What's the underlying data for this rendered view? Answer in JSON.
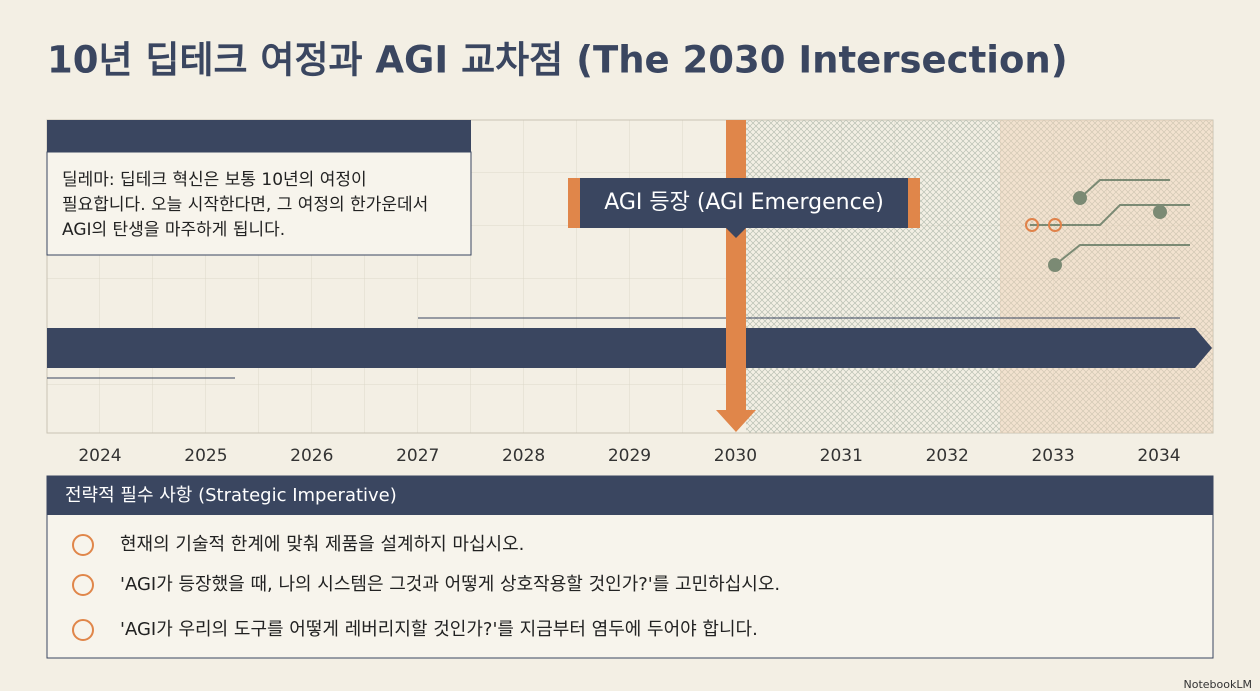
{
  "header": {
    "title": "10년 딥테크 여정과 AGI 교차점 (The 2030 Intersection)"
  },
  "callout": {
    "lines": [
      "딜레마: 딥테크 혁신은 보통 10년의 여정이",
      "필요합니다. 오늘 시작한다면, 그 여정의 한가운데서",
      "AGI의 탄생을 마주하게 됩니다."
    ]
  },
  "marker": {
    "label": "AGI 등장 (AGI Emergence)"
  },
  "timeline": {
    "years": [
      "2024",
      "2025",
      "2026",
      "2027",
      "2028",
      "2029",
      "2030",
      "2031",
      "2032",
      "2033",
      "2034"
    ]
  },
  "strategy": {
    "heading": "전략적 필수 사항 (Strategic Imperative)",
    "items": [
      "현재의 기술적 한계에 맞춰 제품을 설계하지 마십시오.",
      "'AGI가 등장했을 때, 나의 시스템은 그것과 어떻게 상호작용할 것인가?'를 고민하십시오.",
      "'AGI가 우리의 도구를 어떻게 레버리지할 것인가?'를 지금부터 염두에 두어야 합니다."
    ]
  },
  "footer": {
    "brand": "NotebookLM"
  }
}
